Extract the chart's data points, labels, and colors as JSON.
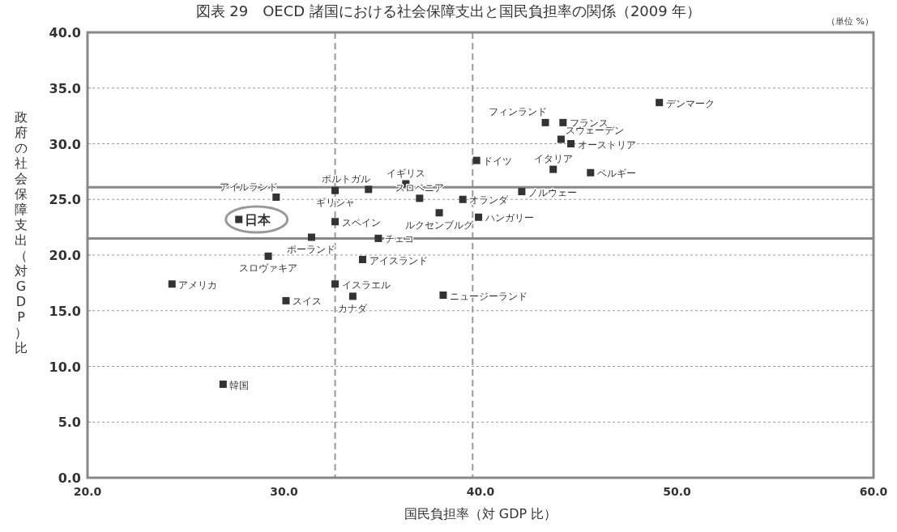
{
  "chart_data": {
    "type": "scatter",
    "title": "図表 29　OECD 諸国における社会保障支出と国民負担率の関係（2009 年）",
    "xlabel": "国民負担率（対 GDP 比）",
    "ylabel": "政府の社会保障支出（対GDP）比",
    "xlim": [
      20,
      60
    ],
    "ylim": [
      0,
      40
    ],
    "xticks": [
      {
        "value": 20,
        "label": "20.0"
      },
      {
        "value": 30,
        "label": "30.0"
      },
      {
        "value": 40,
        "label": "40.0"
      },
      {
        "value": 50,
        "label": "50.0"
      },
      {
        "value": 60,
        "label": "60.0"
      }
    ],
    "yticks": [
      {
        "value": 0,
        "label": "0.0"
      },
      {
        "value": 5,
        "label": "5.0"
      },
      {
        "value": 10,
        "label": "10.0"
      },
      {
        "value": 15,
        "label": "15.0"
      },
      {
        "value": 20,
        "label": "20.0"
      },
      {
        "value": 25,
        "label": "25.0"
      },
      {
        "value": 30,
        "label": "30.0"
      },
      {
        "value": 35,
        "label": "35.0"
      },
      {
        "value": 40,
        "label": "40.0"
      }
    ],
    "grid": "y",
    "marker": "square",
    "series": [
      {
        "color": "#333333",
        "x": [
          49.1,
          43.3,
          44.2,
          44.1,
          44.6,
          39.8,
          43.7,
          45.6,
          42.1,
          39.1,
          39.9,
          29.6,
          32.6,
          34.3,
          36.2,
          36.9,
          37.9,
          27.7,
          32.6,
          31.4,
          34.8,
          29.2,
          34.0,
          24.3,
          32.6,
          38.1,
          33.5,
          30.1,
          26.9
        ],
        "values": [
          33.7,
          31.9,
          31.9,
          30.4,
          30.0,
          28.5,
          27.7,
          27.4,
          25.7,
          25.0,
          23.4,
          25.2,
          25.8,
          25.9,
          26.4,
          25.1,
          23.8,
          23.2,
          23.0,
          21.6,
          21.5,
          19.9,
          19.6,
          17.4,
          17.4,
          16.4,
          16.3,
          15.9,
          8.4
        ]
      }
    ],
    "ref_lines": [
      {
        "axis": "x",
        "value": 32.6,
        "color": "#999999",
        "line_style": "dashed"
      },
      {
        "axis": "x",
        "value": 39.6,
        "color": "#999999",
        "line_style": "dashed"
      },
      {
        "axis": "y",
        "value": 26.1,
        "color": "#888888",
        "line_style": "solid"
      },
      {
        "axis": "y",
        "value": 21.5,
        "color": "#888888",
        "line_style": "solid"
      }
    ],
    "annotations": [
      {
        "text": "デンマーク",
        "x": 49.1,
        "y": 33.7
      },
      {
        "text": "フィンランド",
        "x": 43.3,
        "y": 31.9
      },
      {
        "text": "フランス",
        "x": 44.2,
        "y": 31.9
      },
      {
        "text": "スウェーデン",
        "x": 44.1,
        "y": 30.4
      },
      {
        "text": "オーストリア",
        "x": 44.6,
        "y": 30.0
      },
      {
        "text": "ドイツ",
        "x": 39.8,
        "y": 28.5
      },
      {
        "text": "イタリア",
        "x": 43.7,
        "y": 27.7
      },
      {
        "text": "ベルギー",
        "x": 45.6,
        "y": 27.4
      },
      {
        "text": "ノルウェー",
        "x": 42.1,
        "y": 25.7
      },
      {
        "text": "オランダ",
        "x": 39.1,
        "y": 25.0
      },
      {
        "text": "ハンガリー",
        "x": 39.9,
        "y": 23.4
      },
      {
        "text": "アイルランド",
        "x": 29.6,
        "y": 25.2
      },
      {
        "text": "ギリシャ",
        "x": 32.6,
        "y": 25.8
      },
      {
        "text": "ポルトガル",
        "x": 34.3,
        "y": 25.9
      },
      {
        "text": "イギリス",
        "x": 36.2,
        "y": 26.4
      },
      {
        "text": "スロベニア",
        "x": 36.9,
        "y": 25.1
      },
      {
        "text": "ルクセンブルグ",
        "x": 37.9,
        "y": 23.8
      },
      {
        "text": "日本",
        "x": 27.7,
        "y": 23.2
      },
      {
        "text": "スペイン",
        "x": 32.6,
        "y": 23.0
      },
      {
        "text": "ポーランド",
        "x": 31.4,
        "y": 21.6
      },
      {
        "text": "チェコ",
        "x": 34.8,
        "y": 21.5
      },
      {
        "text": "スロヴァキア",
        "x": 29.2,
        "y": 19.9
      },
      {
        "text": "アイスランド",
        "x": 34.0,
        "y": 19.6
      },
      {
        "text": "アメリカ",
        "x": 24.3,
        "y": 17.4
      },
      {
        "text": "イスラエル",
        "x": 32.6,
        "y": 17.4
      },
      {
        "text": "ニュージーランド",
        "x": 38.1,
        "y": 16.4
      },
      {
        "text": "カナダ",
        "x": 33.5,
        "y": 16.3
      },
      {
        "text": "スイス",
        "x": 30.1,
        "y": 15.9
      },
      {
        "text": "韓国",
        "x": 26.9,
        "y": 8.4
      },
      "（単位 %）"
    ]
  }
}
